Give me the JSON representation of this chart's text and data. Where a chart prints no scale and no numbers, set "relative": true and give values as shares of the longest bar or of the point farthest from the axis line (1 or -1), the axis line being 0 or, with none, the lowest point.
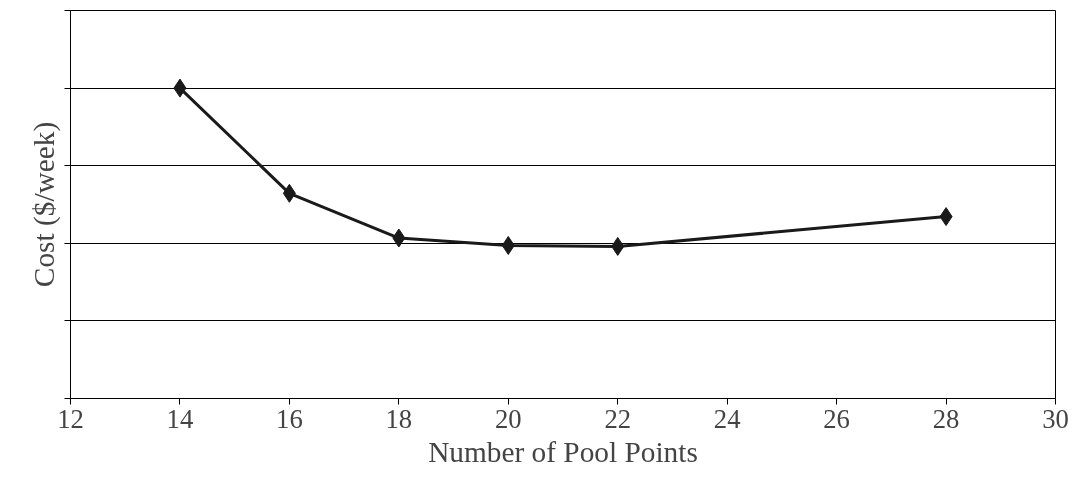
{
  "chart_data": {
    "type": "line",
    "xlabel": "Number of Pool Points",
    "ylabel": "Cost ($/week)",
    "relative": true,
    "x": [
      14,
      16,
      18,
      20,
      22,
      28
    ],
    "series": [
      {
        "color": "#1a1a1a",
        "values": [
          1,
          0.661,
          0.517,
          0.493,
          0.49,
          0.586
        ]
      }
    ],
    "xlim": [
      12,
      30
    ],
    "xticks": [
      12,
      14,
      16,
      18,
      20,
      22,
      24,
      26,
      28,
      30
    ],
    "grid": "y",
    "marker": "diamond",
    "line_style": "solid",
    "tick_labels": "x"
  }
}
